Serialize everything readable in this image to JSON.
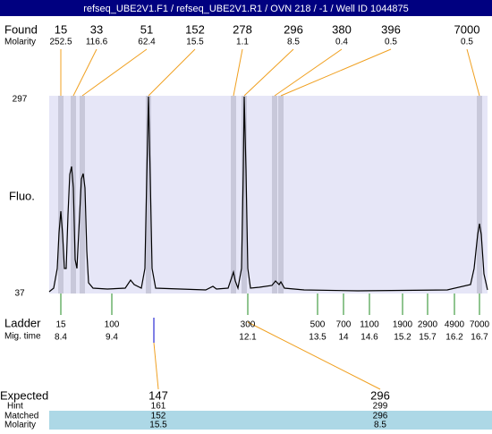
{
  "header": {
    "title": "refseq_UBE2V1.F1 / refseq_UBE2V1.R1 / OVN 218 / -1 / Well ID 1044875"
  },
  "found": {
    "label": "Found",
    "molarity_label": "Molarity",
    "peaks": [
      {
        "size": 15,
        "molarity": 252.5
      },
      {
        "size": 33,
        "molarity": 116.6
      },
      {
        "size": 51,
        "molarity": 62.4
      },
      {
        "size": 152,
        "molarity": 15.5
      },
      {
        "size": 278,
        "molarity": 1.1
      },
      {
        "size": 296,
        "molarity": 8.5
      },
      {
        "size": 380,
        "molarity": 0.4
      },
      {
        "size": 396,
        "molarity": 0.5
      },
      {
        "size": 7000,
        "molarity": 0.5
      }
    ]
  },
  "axis": {
    "label": "Fluo.",
    "top": 297,
    "bottom": 37
  },
  "ladder": {
    "label": "Ladder",
    "time_label": "Mig. time",
    "rows": [
      {
        "size": 15,
        "time": 8.4
      },
      {
        "size": 100,
        "time": 9.4
      },
      {
        "size": 300,
        "time": 12.1
      },
      {
        "size": 500,
        "time": 13.5
      },
      {
        "size": 700,
        "time": 14
      },
      {
        "size": 1100,
        "time": 14.6
      },
      {
        "size": 1900,
        "time": 15.2
      },
      {
        "size": 2900,
        "time": 15.7
      },
      {
        "size": 4900,
        "time": 16.2
      },
      {
        "size": 7000,
        "time": 16.7
      }
    ]
  },
  "expected": {
    "label": "Expected",
    "hint_label": "Hint",
    "matched_label": "Matched",
    "molarity_label": "Molarity",
    "columns": [
      {
        "expected": 147,
        "hint": 161,
        "matched": 152,
        "molarity": 15.5
      },
      {
        "expected": 296,
        "hint": 299,
        "matched": 296,
        "molarity": 8.5
      }
    ]
  }
}
